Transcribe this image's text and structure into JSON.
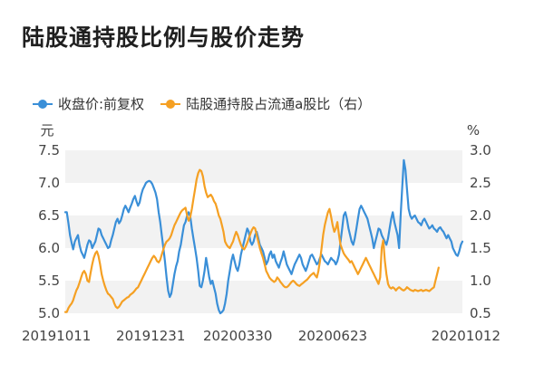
{
  "chart_data": {
    "type": "line",
    "title": "陆股通持股比例与股价走势",
    "grid": "horizontal bands",
    "legend_position": "top-left",
    "left_axis": {
      "unit": "元",
      "range": [
        5.0,
        7.5
      ],
      "ticks": [
        "7.5",
        "7.0",
        "6.5",
        "6.0",
        "5.5",
        "5.0"
      ]
    },
    "right_axis": {
      "unit": "%",
      "range": [
        0.5,
        3.0
      ],
      "ticks": [
        "3.0",
        "2.5",
        "2.0",
        "1.5",
        "1.0",
        "0.5"
      ]
    },
    "x_tick_labels": [
      "20191011",
      "20191231",
      "20200330",
      "20200623",
      "20201012"
    ],
    "x_tick_index": [
      0,
      54,
      109,
      169,
      249
    ],
    "series": [
      {
        "name": "收盘价:前复权",
        "axis": "left",
        "color": "#3a8fd8",
        "values": [
          6.55,
          6.55,
          6.38,
          6.2,
          6.08,
          5.98,
          6.1,
          6.15,
          6.2,
          6.05,
          5.95,
          5.9,
          5.85,
          5.95,
          6.05,
          6.12,
          6.1,
          6.0,
          6.05,
          6.1,
          6.2,
          6.3,
          6.28,
          6.2,
          6.15,
          6.1,
          6.05,
          6.0,
          6.02,
          6.12,
          6.2,
          6.3,
          6.4,
          6.45,
          6.38,
          6.42,
          6.5,
          6.6,
          6.65,
          6.6,
          6.55,
          6.62,
          6.68,
          6.75,
          6.8,
          6.72,
          6.65,
          6.7,
          6.82,
          6.9,
          6.95,
          7.0,
          7.02,
          7.03,
          7.02,
          6.98,
          6.92,
          6.85,
          6.75,
          6.55,
          6.4,
          6.2,
          6.0,
          5.8,
          5.55,
          5.35,
          5.25,
          5.3,
          5.45,
          5.6,
          5.72,
          5.8,
          5.95,
          6.05,
          6.2,
          6.35,
          6.4,
          6.5,
          6.55,
          6.48,
          6.3,
          6.15,
          6.0,
          5.85,
          5.65,
          5.42,
          5.4,
          5.5,
          5.65,
          5.85,
          5.7,
          5.55,
          5.45,
          5.5,
          5.4,
          5.3,
          5.15,
          5.05,
          5.0,
          5.02,
          5.05,
          5.15,
          5.3,
          5.5,
          5.65,
          5.8,
          5.9,
          5.8,
          5.7,
          5.65,
          5.75,
          5.9,
          6.0,
          6.1,
          6.2,
          6.3,
          6.25,
          6.1,
          6.05,
          6.1,
          6.2,
          6.25,
          6.15,
          6.05,
          6.0,
          5.95,
          5.85,
          5.75,
          5.8,
          5.9,
          5.95,
          5.85,
          5.9,
          5.8,
          5.75,
          5.7,
          5.78,
          5.85,
          5.95,
          5.85,
          5.75,
          5.7,
          5.65,
          5.6,
          5.68,
          5.75,
          5.8,
          5.85,
          5.9,
          5.85,
          5.75,
          5.7,
          5.65,
          5.72,
          5.8,
          5.88,
          5.9,
          5.85,
          5.8,
          5.75,
          5.78,
          5.85,
          5.9,
          5.85,
          5.8,
          5.78,
          5.75,
          5.8,
          5.85,
          5.82,
          5.8,
          5.75,
          5.8,
          5.9,
          6.1,
          6.3,
          6.5,
          6.55,
          6.45,
          6.3,
          6.2,
          6.1,
          6.05,
          6.15,
          6.3,
          6.45,
          6.6,
          6.65,
          6.6,
          6.55,
          6.5,
          6.45,
          6.35,
          6.25,
          6.15,
          6.0,
          6.1,
          6.2,
          6.3,
          6.28,
          6.2,
          6.15,
          6.1,
          6.05,
          6.15,
          6.3,
          6.45,
          6.55,
          6.4,
          6.3,
          6.2,
          6.0,
          6.5,
          6.95,
          7.35,
          7.2,
          6.9,
          6.6,
          6.5,
          6.45,
          6.48,
          6.5,
          6.45,
          6.4,
          6.38,
          6.35,
          6.42,
          6.45,
          6.4,
          6.35,
          6.3,
          6.32,
          6.35,
          6.3,
          6.28,
          6.25,
          6.3,
          6.32,
          6.28,
          6.25,
          6.2,
          6.15,
          6.2,
          6.15,
          6.1,
          6.0,
          5.95,
          5.9,
          5.88,
          5.95,
          6.05,
          6.1
        ]
      },
      {
        "name": "陆股通持股占流通a股比（右）",
        "axis": "right",
        "color": "#f5a023",
        "values": [
          0.52,
          0.52,
          0.58,
          0.62,
          0.65,
          0.7,
          0.78,
          0.85,
          0.9,
          0.97,
          1.05,
          1.12,
          1.15,
          1.1,
          1.0,
          0.98,
          1.12,
          1.25,
          1.35,
          1.42,
          1.45,
          1.38,
          1.25,
          1.1,
          1.0,
          0.92,
          0.85,
          0.8,
          0.78,
          0.75,
          0.72,
          0.65,
          0.6,
          0.58,
          0.6,
          0.64,
          0.68,
          0.7,
          0.72,
          0.74,
          0.75,
          0.78,
          0.8,
          0.82,
          0.85,
          0.88,
          0.9,
          0.95,
          1.0,
          1.05,
          1.1,
          1.15,
          1.2,
          1.25,
          1.3,
          1.35,
          1.38,
          1.35,
          1.3,
          1.28,
          1.32,
          1.4,
          1.48,
          1.55,
          1.6,
          1.62,
          1.65,
          1.7,
          1.78,
          1.85,
          1.9,
          1.95,
          2.0,
          2.05,
          2.08,
          2.1,
          2.12,
          2.0,
          1.92,
          1.98,
          2.1,
          2.25,
          2.4,
          2.55,
          2.65,
          2.7,
          2.68,
          2.6,
          2.45,
          2.35,
          2.28,
          2.3,
          2.32,
          2.28,
          2.22,
          2.18,
          2.1,
          2.0,
          1.95,
          1.85,
          1.75,
          1.6,
          1.55,
          1.52,
          1.5,
          1.55,
          1.6,
          1.68,
          1.75,
          1.7,
          1.62,
          1.55,
          1.5,
          1.48,
          1.52,
          1.58,
          1.65,
          1.72,
          1.78,
          1.82,
          1.8,
          1.7,
          1.6,
          1.5,
          1.42,
          1.35,
          1.25,
          1.15,
          1.1,
          1.05,
          1.02,
          1.0,
          0.98,
          1.0,
          1.05,
          1.02,
          0.98,
          0.95,
          0.92,
          0.9,
          0.9,
          0.92,
          0.95,
          0.98,
          1.0,
          0.98,
          0.95,
          0.93,
          0.92,
          0.94,
          0.96,
          0.98,
          1.0,
          1.02,
          1.05,
          1.08,
          1.1,
          1.12,
          1.08,
          1.05,
          1.15,
          1.3,
          1.5,
          1.7,
          1.85,
          1.95,
          2.05,
          2.1,
          1.98,
          1.85,
          1.75,
          1.8,
          1.9,
          1.7,
          1.55,
          1.48,
          1.42,
          1.38,
          1.35,
          1.32,
          1.28,
          1.3,
          1.25,
          1.2,
          1.15,
          1.1,
          1.15,
          1.2,
          1.25,
          1.3,
          1.35,
          1.3,
          1.25,
          1.2,
          1.15,
          1.1,
          1.05,
          1.0,
          0.95,
          1.05,
          1.5,
          1.62,
          1.3,
          1.1,
          0.95,
          0.9,
          0.88,
          0.9,
          0.88,
          0.85,
          0.88,
          0.9,
          0.88,
          0.86,
          0.85,
          0.87,
          0.9,
          0.88,
          0.86,
          0.85,
          0.84,
          0.86,
          0.85,
          0.84,
          0.85,
          0.86,
          0.84,
          0.85,
          0.86,
          0.85,
          0.84,
          0.86,
          0.88,
          0.9,
          1.0,
          1.1,
          1.2
        ]
      }
    ]
  }
}
